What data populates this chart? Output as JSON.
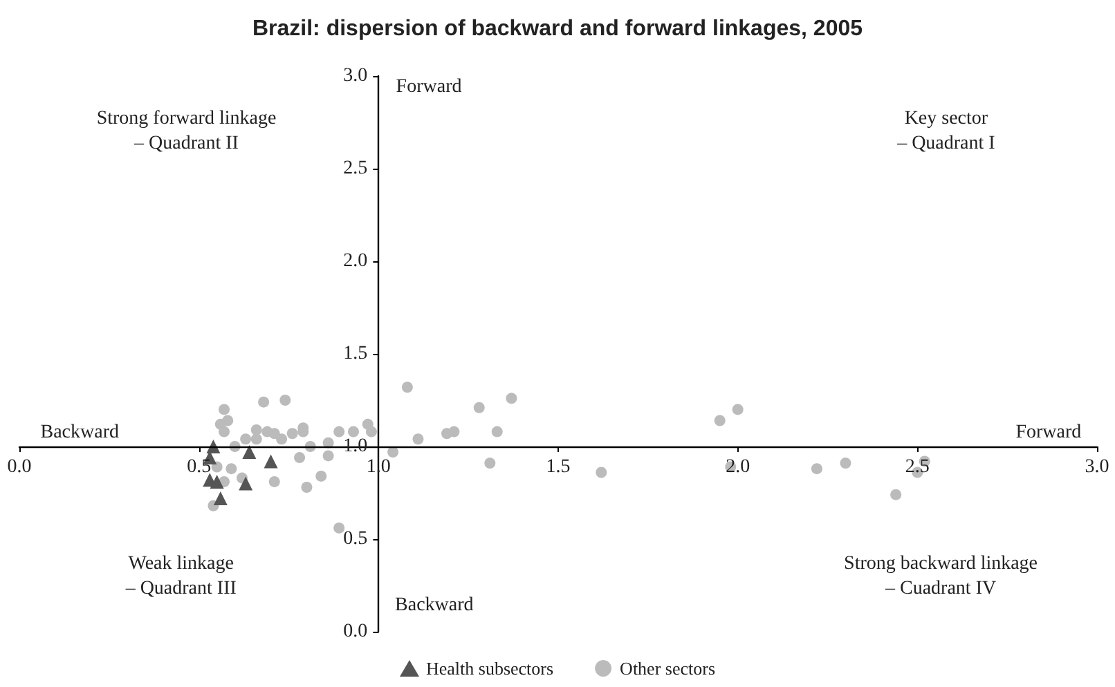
{
  "chart_data": {
    "type": "scatter",
    "title": "Brazil: dispersion of backward and forward linkages, 2005",
    "series": [
      {
        "name": "Health subsectors",
        "color": "#555555",
        "marker": "triangle",
        "x": [
          0.54,
          0.53,
          0.64,
          0.7,
          0.53,
          0.55,
          0.63,
          0.56
        ],
        "values": [
          1.0,
          0.94,
          0.97,
          0.92,
          0.82,
          0.81,
          0.8,
          0.72
        ]
      },
      {
        "name": "Other sectors",
        "color": "#bbbbbb",
        "marker": "circle",
        "x": [
          1.08,
          1.11,
          1.04,
          0.57,
          0.58,
          0.56,
          0.57,
          0.68,
          0.74,
          0.6,
          0.63,
          0.66,
          0.66,
          0.69,
          0.71,
          0.73,
          0.76,
          0.79,
          0.79,
          0.81,
          0.78,
          0.86,
          0.89,
          0.93,
          0.97,
          0.98,
          0.86,
          0.84,
          0.8,
          0.71,
          0.62,
          0.59,
          0.57,
          0.55,
          0.54,
          0.89,
          1.19,
          1.21,
          1.28,
          1.37,
          1.33,
          1.31,
          1.62,
          1.95,
          2.0,
          1.98,
          2.22,
          2.3,
          2.52,
          2.5,
          2.44
        ],
        "values": [
          1.32,
          1.04,
          0.97,
          1.2,
          1.14,
          1.12,
          1.08,
          1.24,
          1.25,
          1.0,
          1.04,
          1.09,
          1.04,
          1.08,
          1.07,
          1.04,
          1.07,
          1.1,
          1.08,
          1.0,
          0.94,
          1.02,
          1.08,
          1.08,
          1.12,
          1.08,
          0.95,
          0.84,
          0.78,
          0.81,
          0.83,
          0.88,
          0.81,
          0.89,
          0.68,
          0.56,
          1.07,
          1.08,
          1.21,
          1.26,
          1.08,
          0.91,
          0.86,
          1.14,
          1.2,
          0.89,
          0.88,
          0.91,
          0.92,
          0.86,
          0.74
        ]
      }
    ],
    "xlim": [
      0,
      3
    ],
    "xticks": [
      {
        "value": 0,
        "label": "0.0"
      },
      0.5,
      {
        "value": 1,
        "label": "1.0"
      },
      1.5,
      {
        "value": 2,
        "label": "2.0"
      },
      2.5,
      {
        "value": 3,
        "label": "3.0"
      }
    ],
    "ylim": [
      0,
      3
    ],
    "yticks": [
      {
        "value": 0,
        "label": "0.0"
      },
      0.5,
      {
        "value": 1,
        "label": "1.0"
      },
      1.5,
      {
        "value": 2,
        "label": "2.0"
      },
      2.5,
      {
        "value": 3,
        "label": "3.0"
      }
    ],
    "annotations": [
      "Strong forward linkage\n– Quadrant II",
      "Key sector\n– Quadrant I",
      "Weak linkage\n– Quadrant III",
      "Strong backward linkage\n– Cuadrant IV",
      "Forward",
      "Backward",
      "Backward",
      "Forward"
    ],
    "grid": false,
    "legend": "bottom"
  }
}
